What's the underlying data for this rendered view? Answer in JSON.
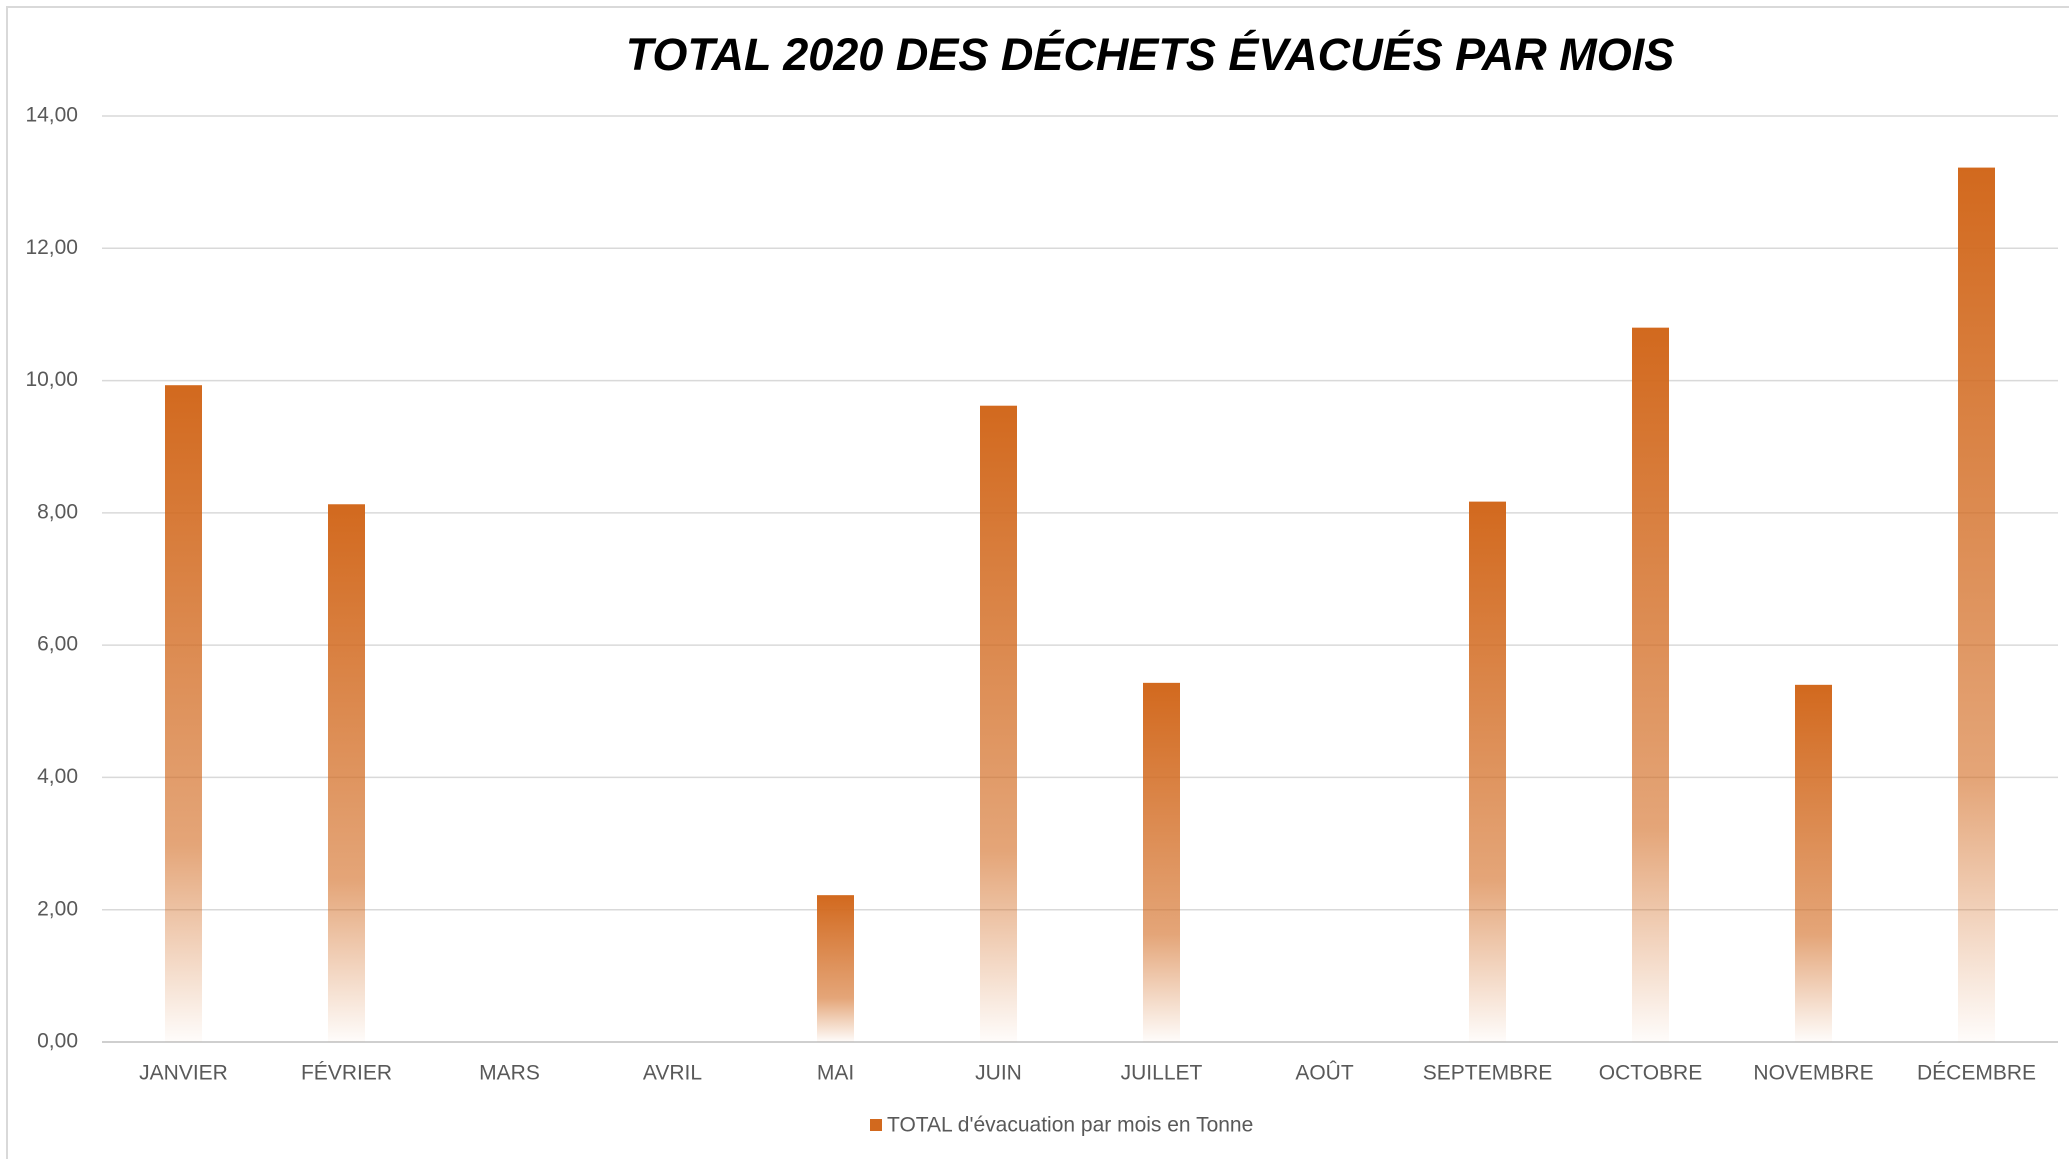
{
  "chart_data": {
    "type": "bar",
    "title": "TOTAL 2020 DES DÉCHETS ÉVACUÉS PAR MOIS",
    "categories": [
      "JANVIER",
      "FÉVRIER",
      "MARS",
      "AVRIL",
      "MAI",
      "JUIN",
      "JUILLET",
      "AOÛT",
      "SEPTEMBRE",
      "OCTOBRE",
      "NOVEMBRE",
      "DÉCEMBRE"
    ],
    "series": [
      {
        "name": "TOTAL d'évacuation par mois en Tonne",
        "color": "#d2691e",
        "values": [
          9.93,
          8.13,
          0,
          0,
          2.22,
          9.62,
          5.43,
          0,
          8.17,
          10.8,
          5.4,
          13.22
        ]
      }
    ],
    "ylim": [
      0,
      14
    ],
    "yticks": [
      {
        "value": 0,
        "label": "0,00"
      },
      {
        "value": 2,
        "label": "2,00"
      },
      {
        "value": 4,
        "label": "4,00"
      },
      {
        "value": 6,
        "label": "6,00"
      },
      {
        "value": 8,
        "label": "8,00"
      },
      {
        "value": 10,
        "label": "10,00"
      },
      {
        "value": 12,
        "label": "12,00"
      },
      {
        "value": 14,
        "label": "14,00"
      }
    ],
    "grid": true,
    "legend": "bottom"
  }
}
